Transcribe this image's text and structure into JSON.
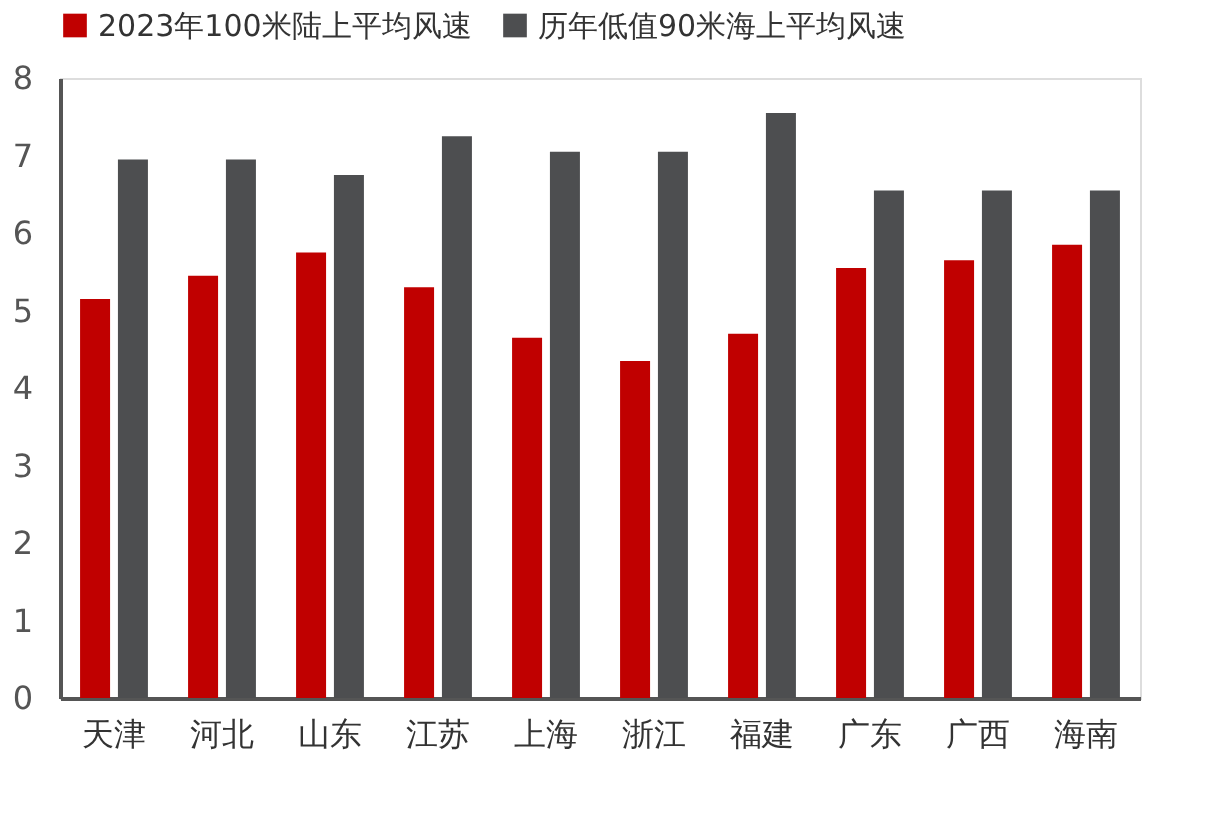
{
  "chart_data": {
    "type": "bar",
    "categories": [
      "天津",
      "河北",
      "山东",
      "江苏",
      "上海",
      "浙江",
      "福建",
      "广东",
      "广西",
      "海南"
    ],
    "series": [
      {
        "name": "2023年100米陆上平均风速",
        "color": "#c00000",
        "values": [
          5.15,
          5.45,
          5.75,
          5.3,
          4.65,
          4.35,
          4.7,
          5.55,
          5.65,
          5.85
        ]
      },
      {
        "name": "历年低值90米海上平均风速",
        "color": "#4d4e50",
        "values": [
          6.95,
          6.95,
          6.75,
          7.25,
          7.05,
          7.05,
          7.55,
          6.55,
          6.55,
          6.55
        ]
      }
    ],
    "ylim": [
      0,
      8
    ],
    "yticks": [
      0,
      1,
      2,
      3,
      4,
      5,
      6,
      7,
      8
    ],
    "grid": false,
    "legend": "top"
  }
}
